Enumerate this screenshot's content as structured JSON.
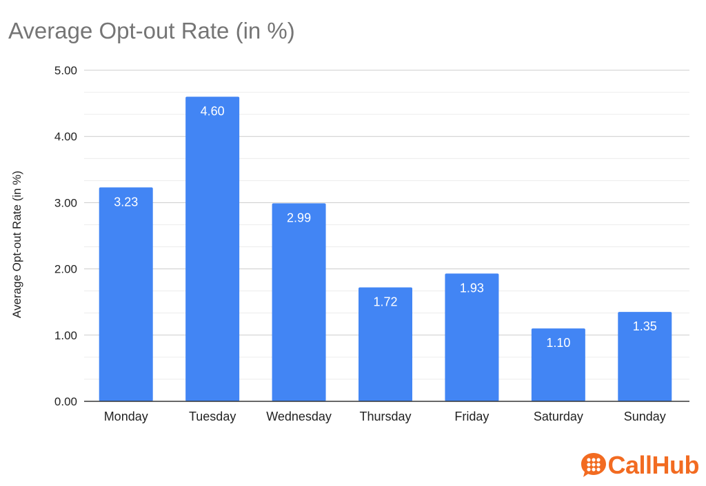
{
  "chart_data": {
    "type": "bar",
    "title": "Average Opt-out Rate (in %)",
    "xlabel": "",
    "ylabel": "Average Opt-out Rate (in %)",
    "categories": [
      "Monday",
      "Tuesday",
      "Wednesday",
      "Thursday",
      "Friday",
      "Saturday",
      "Sunday"
    ],
    "values": [
      3.23,
      4.6,
      2.99,
      1.72,
      1.93,
      1.1,
      1.35
    ],
    "data_labels": [
      "3.23",
      "4.60",
      "2.99",
      "1.72",
      "1.93",
      "1.10",
      "1.35"
    ],
    "ylim": [
      0,
      5
    ],
    "yticks": [
      "0.00",
      "1.00",
      "2.00",
      "3.00",
      "4.00",
      "5.00"
    ],
    "grid": true,
    "legend": "none",
    "bar_color": "#4285f4"
  },
  "logo": {
    "text": "CallHub",
    "color": "#f26b21"
  }
}
